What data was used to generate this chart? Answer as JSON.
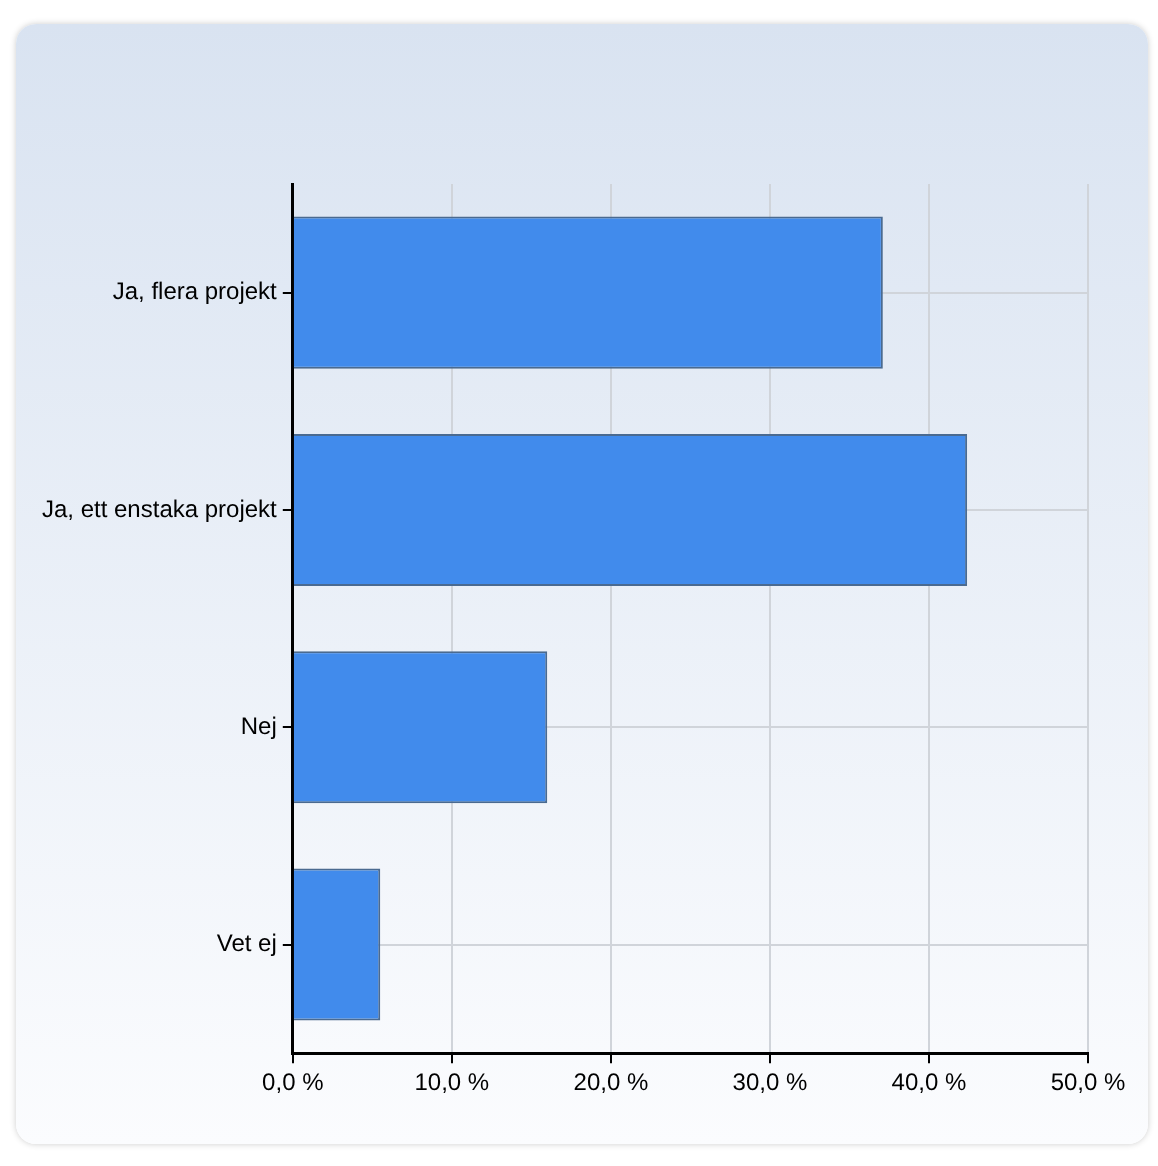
{
  "chart_data": {
    "type": "bar",
    "orientation": "horizontal",
    "categories": [
      "Ja, flera projekt",
      "Ja, ett enstaka projekt",
      "Nej",
      "Vet ej"
    ],
    "values": [
      37.1,
      42.4,
      16.0,
      5.5
    ],
    "color": "#418bec",
    "xlim": [
      0,
      50
    ],
    "xticks": [
      {
        "value": 0,
        "label": "0,0 %"
      },
      {
        "value": 10,
        "label": "10,0 %"
      },
      {
        "value": 20,
        "label": "20,0 %"
      },
      {
        "value": 30,
        "label": "30,0 %"
      },
      {
        "value": 40,
        "label": "40,0 %"
      },
      {
        "value": 50,
        "label": "50,0 %"
      }
    ],
    "grid": true,
    "legend": false
  }
}
